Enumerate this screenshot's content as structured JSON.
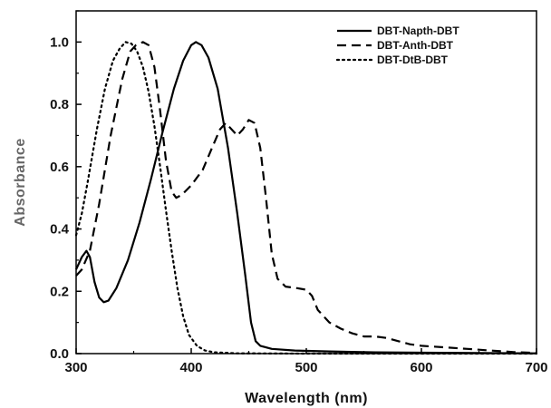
{
  "chart_data": {
    "type": "line",
    "xlabel": "Wavelength (nm)",
    "ylabel": "Absorbance",
    "xlim": [
      300,
      700
    ],
    "ylim": [
      0,
      1.1
    ],
    "x_ticks": [
      "300",
      "400",
      "500",
      "600",
      "700"
    ],
    "x_tick_values": [
      300,
      400,
      500,
      600,
      700
    ],
    "y_ticks": [
      "0.0",
      "0.2",
      "0.4",
      "0.6",
      "0.8",
      "1.0"
    ],
    "y_tick_values": [
      0,
      0.2,
      0.4,
      0.6,
      0.8,
      1.0
    ],
    "grid": false,
    "legend_position": "top-right",
    "series": [
      {
        "name": "DBT-Napth-DBT",
        "style": "solid",
        "color": "#000000",
        "points": [
          [
            300,
            0.27
          ],
          [
            305,
            0.31
          ],
          [
            309,
            0.33
          ],
          [
            312,
            0.31
          ],
          [
            316,
            0.23
          ],
          [
            320,
            0.18
          ],
          [
            324,
            0.165
          ],
          [
            328,
            0.17
          ],
          [
            335,
            0.21
          ],
          [
            345,
            0.3
          ],
          [
            355,
            0.42
          ],
          [
            365,
            0.56
          ],
          [
            375,
            0.71
          ],
          [
            385,
            0.85
          ],
          [
            393,
            0.94
          ],
          [
            400,
            0.99
          ],
          [
            404,
            1.0
          ],
          [
            409,
            0.99
          ],
          [
            415,
            0.95
          ],
          [
            423,
            0.85
          ],
          [
            432,
            0.66
          ],
          [
            440,
            0.45
          ],
          [
            447,
            0.25
          ],
          [
            452,
            0.1
          ],
          [
            456,
            0.04
          ],
          [
            460,
            0.025
          ],
          [
            470,
            0.015
          ],
          [
            490,
            0.01
          ],
          [
            520,
            0.007
          ],
          [
            560,
            0.004
          ],
          [
            600,
            0.003
          ],
          [
            650,
            0.002
          ],
          [
            700,
            0.001
          ]
        ]
      },
      {
        "name": "DBT-Anth-DBT",
        "style": "dashed",
        "color": "#000000",
        "points": [
          [
            300,
            0.25
          ],
          [
            305,
            0.27
          ],
          [
            312,
            0.33
          ],
          [
            320,
            0.48
          ],
          [
            330,
            0.7
          ],
          [
            340,
            0.88
          ],
          [
            347,
            0.97
          ],
          [
            352,
            0.99
          ],
          [
            358,
            1.0
          ],
          [
            363,
            0.99
          ],
          [
            368,
            0.92
          ],
          [
            373,
            0.78
          ],
          [
            378,
            0.62
          ],
          [
            383,
            0.52
          ],
          [
            387,
            0.5
          ],
          [
            392,
            0.51
          ],
          [
            400,
            0.54
          ],
          [
            410,
            0.59
          ],
          [
            418,
            0.66
          ],
          [
            425,
            0.72
          ],
          [
            430,
            0.74
          ],
          [
            435,
            0.72
          ],
          [
            440,
            0.7
          ],
          [
            445,
            0.72
          ],
          [
            450,
            0.75
          ],
          [
            455,
            0.74
          ],
          [
            460,
            0.66
          ],
          [
            465,
            0.5
          ],
          [
            470,
            0.32
          ],
          [
            475,
            0.24
          ],
          [
            482,
            0.215
          ],
          [
            492,
            0.21
          ],
          [
            500,
            0.205
          ],
          [
            505,
            0.185
          ],
          [
            510,
            0.14
          ],
          [
            520,
            0.1
          ],
          [
            530,
            0.08
          ],
          [
            540,
            0.065
          ],
          [
            550,
            0.055
          ],
          [
            560,
            0.055
          ],
          [
            570,
            0.05
          ],
          [
            580,
            0.04
          ],
          [
            590,
            0.03
          ],
          [
            600,
            0.025
          ],
          [
            620,
            0.02
          ],
          [
            640,
            0.015
          ],
          [
            660,
            0.01
          ],
          [
            680,
            0.005
          ],
          [
            700,
            0.002
          ]
        ]
      },
      {
        "name": "DBT-DtB-DBT",
        "style": "dotted",
        "color": "#000000",
        "points": [
          [
            300,
            0.38
          ],
          [
            305,
            0.45
          ],
          [
            310,
            0.55
          ],
          [
            318,
            0.72
          ],
          [
            325,
            0.85
          ],
          [
            332,
            0.94
          ],
          [
            338,
            0.98
          ],
          [
            343,
            1.0
          ],
          [
            348,
            0.995
          ],
          [
            353,
            0.97
          ],
          [
            358,
            0.92
          ],
          [
            363,
            0.84
          ],
          [
            368,
            0.73
          ],
          [
            373,
            0.6
          ],
          [
            378,
            0.46
          ],
          [
            383,
            0.33
          ],
          [
            388,
            0.21
          ],
          [
            393,
            0.12
          ],
          [
            398,
            0.06
          ],
          [
            405,
            0.025
          ],
          [
            412,
            0.01
          ],
          [
            420,
            0.004
          ],
          [
            440,
            0.001
          ],
          [
            500,
            0.0
          ],
          [
            700,
            0.0
          ]
        ]
      }
    ]
  }
}
